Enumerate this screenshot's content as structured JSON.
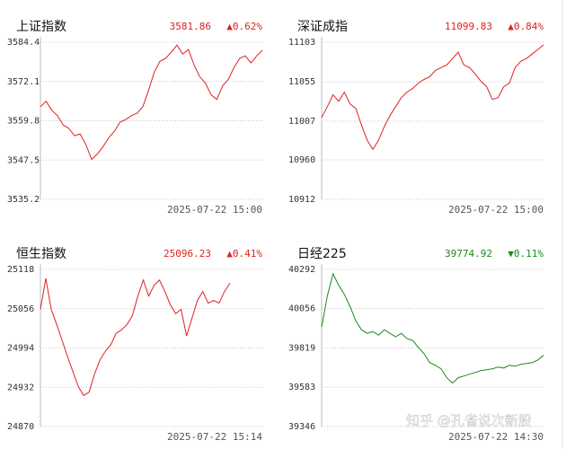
{
  "chart_data": [
    {
      "type": "line",
      "title": "上证指数",
      "last": "3581.86",
      "change": "▲0.62%",
      "color": "#e02020",
      "time": "2025-07-22 15:00",
      "ylim": [
        3535.2,
        3584.4
      ],
      "yticks": [
        3535.2,
        3547.5,
        3559.8,
        3572.1,
        3584.4
      ],
      "xlim": [
        0,
        39
      ],
      "grid": true,
      "x": [
        0,
        1,
        2,
        3,
        4,
        5,
        6,
        7,
        8,
        9,
        10,
        11,
        12,
        13,
        14,
        15,
        16,
        17,
        18,
        19,
        20,
        21,
        22,
        23,
        24,
        25,
        26,
        27,
        28,
        29,
        30,
        31,
        32,
        33,
        34,
        35,
        36,
        37,
        38,
        39
      ],
      "values": [
        3564.2,
        3565.9,
        3563.1,
        3561.4,
        3558.5,
        3557.4,
        3555.1,
        3555.7,
        3552.3,
        3547.7,
        3549.4,
        3551.7,
        3554.5,
        3556.5,
        3559.4,
        3560.2,
        3561.4,
        3562.2,
        3564.2,
        3569.3,
        3575.0,
        3578.4,
        3579.3,
        3581.3,
        3583.5,
        3580.7,
        3582.1,
        3577.3,
        3573.6,
        3571.6,
        3567.9,
        3566.5,
        3570.7,
        3572.7,
        3576.4,
        3579.3,
        3580.1,
        3577.9,
        3580.1,
        3581.9
      ]
    },
    {
      "type": "line",
      "title": "深证成指",
      "last": "11099.83",
      "change": "▲0.84%",
      "color": "#e02020",
      "time": "2025-07-22 15:00",
      "ylim": [
        10912,
        11103
      ],
      "yticks": [
        10912,
        10960,
        11007,
        11055,
        11103
      ],
      "xlim": [
        0,
        39
      ],
      "grid": true,
      "x": [
        0,
        1,
        2,
        3,
        4,
        5,
        6,
        7,
        8,
        9,
        10,
        11,
        12,
        13,
        14,
        15,
        16,
        17,
        18,
        19,
        20,
        21,
        22,
        23,
        24,
        25,
        26,
        27,
        28,
        29,
        30,
        31,
        32,
        33,
        34,
        35,
        36,
        37,
        38,
        39
      ],
      "values": [
        11011.4,
        11024.6,
        11039.0,
        11031.2,
        11042.3,
        11027.9,
        11022.4,
        11002.5,
        10983.8,
        10972.7,
        10983.8,
        11000.3,
        11013.6,
        11024.6,
        11035.7,
        11042.3,
        11046.7,
        11053.3,
        11057.7,
        11061.0,
        11068.8,
        11072.1,
        11075.4,
        11083.1,
        11090.9,
        11075.4,
        11072.1,
        11064.4,
        11055.5,
        11048.9,
        11033.4,
        11035.7,
        11048.9,
        11053.3,
        11072.1,
        11079.8,
        11083.1,
        11088.6,
        11094.2,
        11099.8
      ]
    },
    {
      "type": "line",
      "title": "恒生指数",
      "last": "25096.23",
      "change": "▲0.41%",
      "color": "#e02020",
      "time": "2025-07-22 15:14",
      "ylim": [
        24870,
        25118
      ],
      "yticks": [
        24870,
        24932,
        24994,
        25056,
        25118
      ],
      "xlim": [
        0,
        41
      ],
      "grid": true,
      "x": [
        0,
        1,
        2,
        3,
        4,
        5,
        6,
        7,
        8,
        9,
        10,
        11,
        12,
        13,
        14,
        15,
        16,
        17,
        18,
        19,
        20,
        21,
        22,
        23,
        24,
        25,
        26,
        27,
        28,
        29,
        30,
        31,
        32,
        33,
        34,
        35
      ],
      "values": [
        25055.0,
        25104.0,
        25055.0,
        25031.1,
        25006.0,
        24980.7,
        24956.9,
        24933.1,
        24919.1,
        24924.6,
        24952.7,
        24975.1,
        24989.1,
        24999.0,
        25017.2,
        25022.7,
        25031.1,
        25045.1,
        25075.9,
        25101.2,
        25075.9,
        25092.8,
        25101.2,
        25083.0,
        25062.0,
        25048.0,
        25055.0,
        25013.0,
        25041.0,
        25068.9,
        25083.0,
        25064.7,
        25069.0,
        25064.7,
        25083.0,
        25096.2
      ]
    },
    {
      "type": "line",
      "title": "日经225",
      "last": "39774.92",
      "change": "▼0.11%",
      "color": "#1a8a1a",
      "time": "2025-07-22 14:30",
      "ylim": [
        39346,
        40292
      ],
      "yticks": [
        39346,
        39583,
        39819,
        40056,
        40292
      ],
      "xlim": [
        0,
        39
      ],
      "grid": true,
      "x": [
        0,
        1,
        2,
        3,
        4,
        5,
        6,
        7,
        8,
        9,
        10,
        11,
        12,
        13,
        14,
        15,
        16,
        17,
        18,
        19,
        20,
        21,
        22,
        23,
        24,
        25,
        26,
        27,
        28,
        29,
        30,
        31,
        32,
        33,
        34,
        35,
        36,
        37,
        38,
        39
      ],
      "values": [
        39944.6,
        40131.6,
        40265.3,
        40195.8,
        40142.3,
        40067.5,
        39982.0,
        39928.5,
        39907.2,
        39917.9,
        39896.5,
        39928.5,
        39907.2,
        39885.8,
        39907.2,
        39875.1,
        39864.4,
        39821.7,
        39784.2,
        39730.8,
        39714.8,
        39693.4,
        39639.9,
        39607.8,
        39639.9,
        39650.6,
        39661.3,
        39672.0,
        39682.7,
        39688.0,
        39693.4,
        39704.1,
        39698.7,
        39714.8,
        39709.4,
        39720.1,
        39725.5,
        39730.8,
        39746.9,
        39774.9
      ]
    }
  ],
  "watermark": "知乎 @孔雀说次新股"
}
